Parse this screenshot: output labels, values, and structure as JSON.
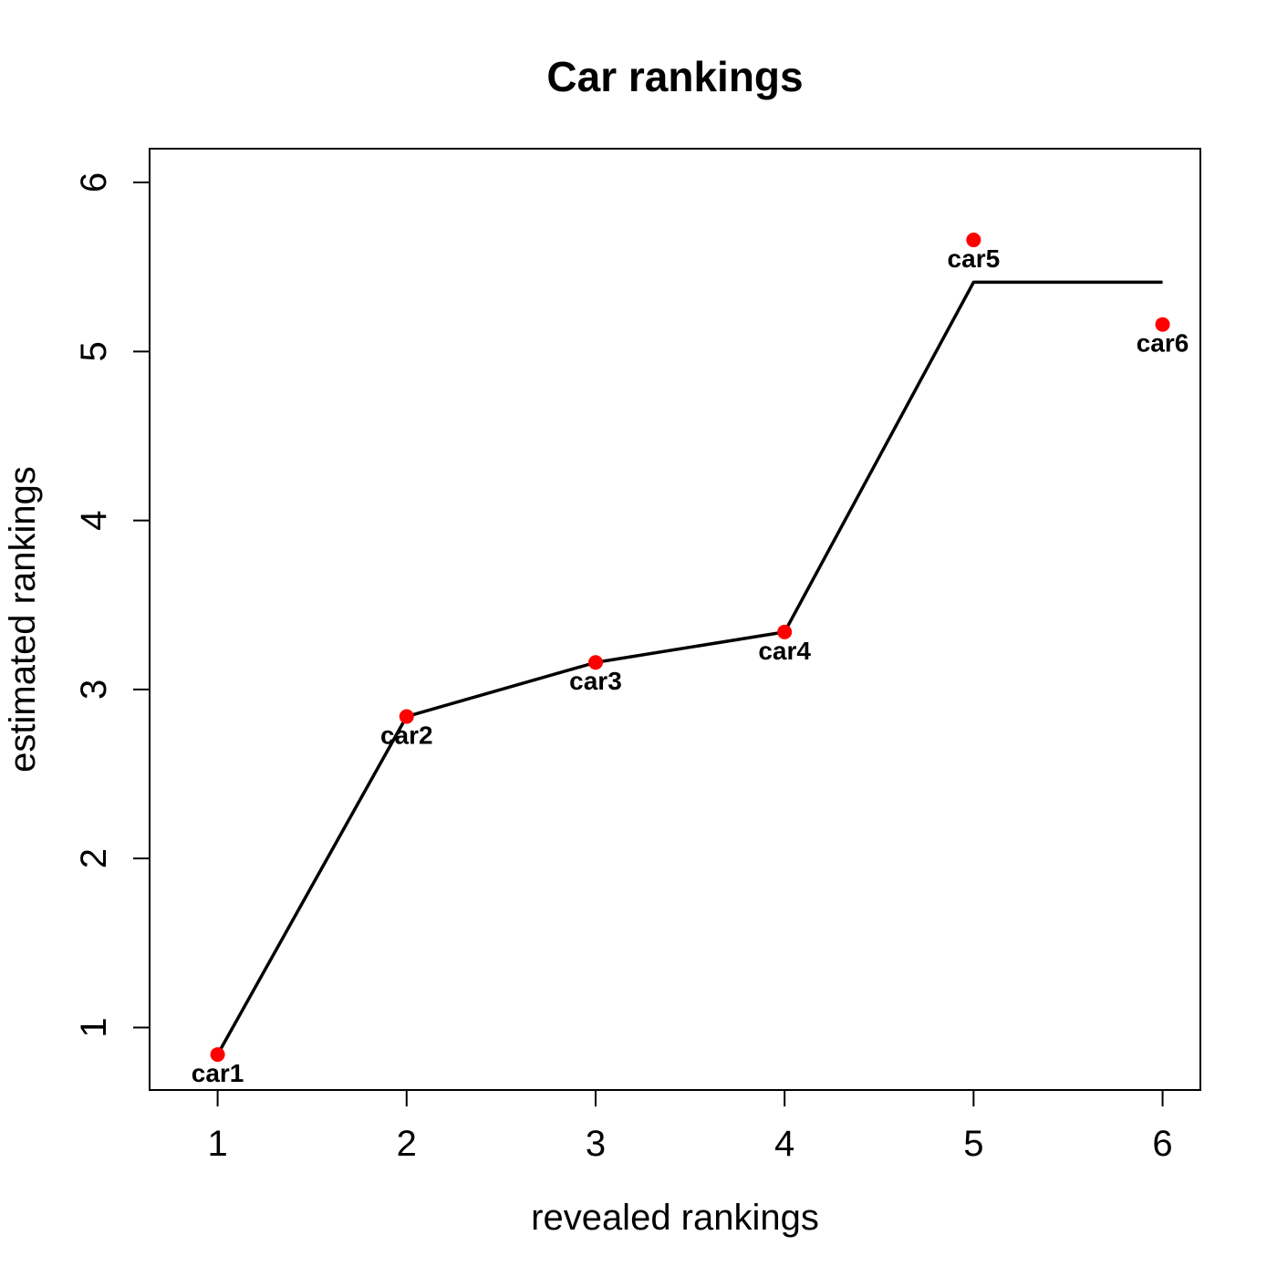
{
  "chart_data": {
    "type": "scatter",
    "title": "Car rankings",
    "xlabel": "revealed rankings",
    "ylabel": "estimated rankings",
    "xlim": [
      0.64,
      6.2
    ],
    "ylim": [
      0.63,
      6.2
    ],
    "xticks": [
      1,
      2,
      3,
      4,
      5,
      6
    ],
    "yticks": [
      1,
      2,
      3,
      4,
      5,
      6
    ],
    "grid": false,
    "point_color": "#ff0000",
    "line_color": "#000000",
    "points": [
      {
        "label": "car1",
        "x": 1,
        "y": 0.84
      },
      {
        "label": "car2",
        "x": 2,
        "y": 2.84
      },
      {
        "label": "car3",
        "x": 3,
        "y": 3.16
      },
      {
        "label": "car4",
        "x": 4,
        "y": 3.34
      },
      {
        "label": "car5",
        "x": 5,
        "y": 5.66
      },
      {
        "label": "car6",
        "x": 6,
        "y": 5.16
      }
    ],
    "fit_line": {
      "x": [
        1,
        2,
        3,
        4,
        5,
        6
      ],
      "y": [
        0.84,
        2.84,
        3.16,
        3.34,
        5.41,
        5.41
      ]
    }
  }
}
